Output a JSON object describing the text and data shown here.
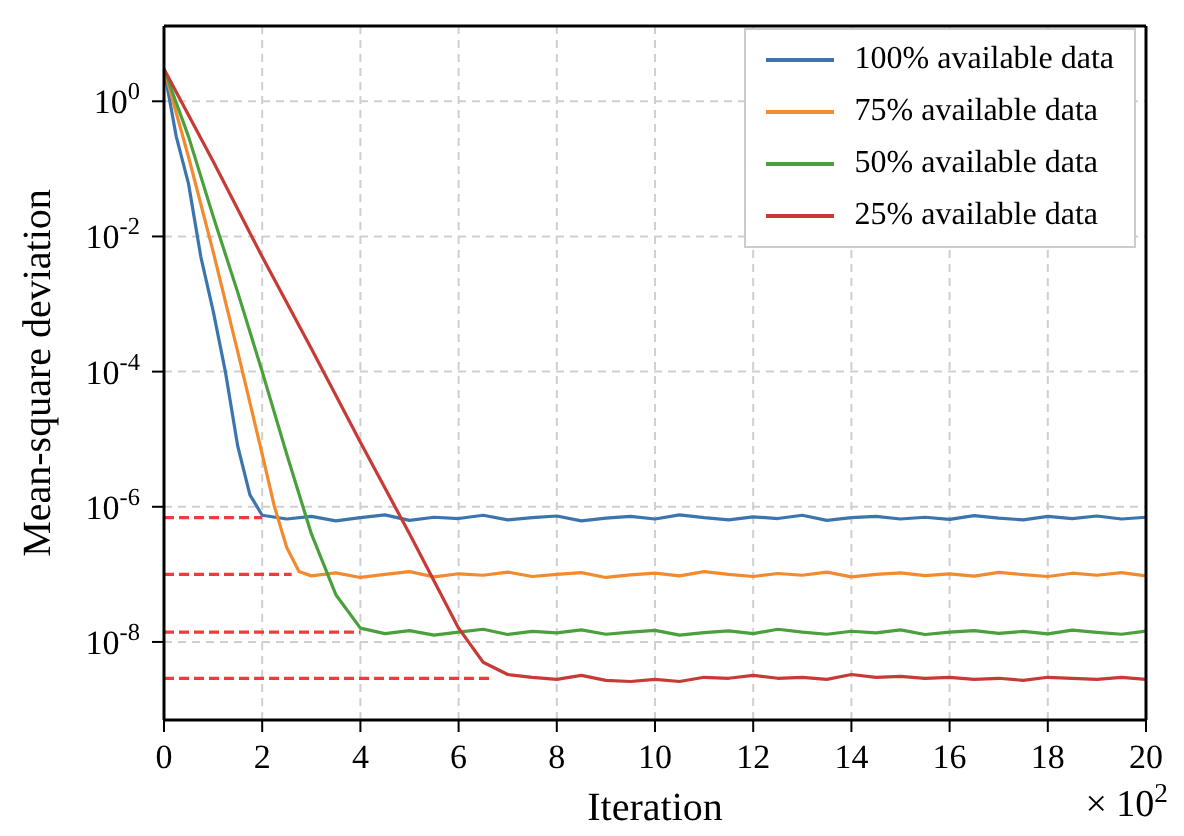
{
  "chart_data": {
    "type": "line",
    "xlabel": "Iteration",
    "ylabel": "Mean-square deviation",
    "annotations": [
      "× 10$^{2}$"
    ],
    "log": "y",
    "grid": true,
    "legend": "top right",
    "line_style": "solid",
    "marker": "none",
    "xlim": [
      0,
      20
    ],
    "xticks": [
      0,
      2,
      4,
      6,
      8,
      10,
      12,
      14,
      16,
      18,
      20
    ],
    "ylim": [
      7e-10,
      13
    ],
    "yticks": [
      {
        "value": 1e-08,
        "label": "10$^{-8}$"
      },
      {
        "value": 1e-06,
        "label": "10$^{-6}$"
      },
      {
        "value": 0.0001,
        "label": "10$^{-4}$"
      },
      {
        "value": 0.01,
        "label": "10$^{-2}$"
      },
      {
        "value": 1,
        "label": "10$^{0}$"
      }
    ],
    "series": [
      {
        "name": "100% available data",
        "color": "#3a75b0",
        "x": [
          0,
          0.25,
          0.5,
          0.75,
          1,
          1.25,
          1.5,
          1.75,
          2,
          2.5,
          3,
          3.5,
          4,
          4.5,
          5,
          5.5,
          6,
          6.5,
          7,
          7.5,
          8,
          8.5,
          9,
          9.5,
          10,
          10.5,
          11,
          11.5,
          12,
          12.5,
          13,
          13.5,
          14,
          14.5,
          15,
          15.5,
          16,
          16.5,
          17,
          17.5,
          18,
          18.5,
          19,
          19.5,
          20
        ],
        "values": [
          3,
          0.3,
          0.06,
          0.005,
          0.0008,
          0.0001,
          8e-06,
          1.5e-06,
          7.5e-07,
          6.6e-07,
          7.2e-07,
          6.2e-07,
          6.9e-07,
          7.6e-07,
          6.3e-07,
          7e-07,
          6.7e-07,
          7.5e-07,
          6.4e-07,
          6.9e-07,
          7.3e-07,
          6.2e-07,
          6.8e-07,
          7.2e-07,
          6.6e-07,
          7.6e-07,
          6.9e-07,
          6.4e-07,
          7.1e-07,
          6.7e-07,
          7.5e-07,
          6.3e-07,
          6.9e-07,
          7.2e-07,
          6.6e-07,
          7e-07,
          6.5e-07,
          7.4e-07,
          6.8e-07,
          6.4e-07,
          7.2e-07,
          6.7e-07,
          7.3e-07,
          6.6e-07,
          7e-07
        ]
      },
      {
        "name": "75% available data",
        "color": "#f28a2e",
        "x": [
          0,
          0.5,
          1,
          1.5,
          2,
          2.25,
          2.5,
          2.75,
          3,
          3.5,
          4,
          4.5,
          5,
          5.5,
          6,
          6.5,
          7,
          7.5,
          8,
          8.5,
          9,
          9.5,
          10,
          10.5,
          11,
          11.5,
          12,
          12.5,
          13,
          13.5,
          14,
          14.5,
          15,
          15.5,
          16,
          16.5,
          17,
          17.5,
          18,
          18.5,
          19,
          19.5,
          20
        ],
        "values": [
          3,
          0.15,
          0.006,
          0.0002,
          6e-06,
          1e-06,
          2.5e-07,
          1.1e-07,
          9.5e-08,
          1.05e-07,
          9e-08,
          1e-07,
          1.1e-07,
          9.2e-08,
          1.02e-07,
          9.7e-08,
          1.08e-07,
          9.3e-08,
          1e-07,
          1.06e-07,
          9e-08,
          9.8e-08,
          1.04e-07,
          9.5e-08,
          1.1e-07,
          1e-07,
          9.3e-08,
          1.03e-07,
          9.7e-08,
          1.08e-07,
          9.2e-08,
          1e-07,
          1.05e-07,
          9.6e-08,
          1.02e-07,
          9.4e-08,
          1.07e-07,
          9.9e-08,
          9.3e-08,
          1.04e-07,
          9.7e-08,
          1.06e-07,
          9.5e-08
        ]
      },
      {
        "name": "50% available data",
        "color": "#4aa03c",
        "x": [
          0,
          0.5,
          1,
          1.5,
          2,
          2.5,
          3,
          3.5,
          4,
          4.5,
          5,
          5.5,
          6,
          6.5,
          7,
          7.5,
          8,
          8.5,
          9,
          9.5,
          10,
          10.5,
          11,
          11.5,
          12,
          12.5,
          13,
          13.5,
          14,
          14.5,
          15,
          15.5,
          16,
          16.5,
          17,
          17.5,
          18,
          18.5,
          19,
          19.5,
          20
        ],
        "values": [
          3,
          0.3,
          0.02,
          0.0015,
          0.0001,
          6e-06,
          4e-07,
          5e-08,
          1.6e-08,
          1.33e-08,
          1.47e-08,
          1.26e-08,
          1.4e-08,
          1.54e-08,
          1.29e-08,
          1.43e-08,
          1.36e-08,
          1.51e-08,
          1.3e-08,
          1.4e-08,
          1.48e-08,
          1.26e-08,
          1.37e-08,
          1.46e-08,
          1.33e-08,
          1.54e-08,
          1.4e-08,
          1.3e-08,
          1.44e-08,
          1.36e-08,
          1.51e-08,
          1.29e-08,
          1.4e-08,
          1.47e-08,
          1.34e-08,
          1.43e-08,
          1.32e-08,
          1.5e-08,
          1.39e-08,
          1.3e-08,
          1.45e-08
        ]
      },
      {
        "name": "25% available data",
        "color": "#c83a35",
        "x": [
          0,
          1,
          2,
          3,
          4,
          5,
          6,
          6.5,
          7,
          7.5,
          8,
          8.5,
          9,
          9.5,
          10,
          10.5,
          11,
          11.5,
          12,
          12.5,
          13,
          13.5,
          14,
          14.5,
          15,
          15.5,
          16,
          16.5,
          17,
          17.5,
          18,
          18.5,
          19,
          19.5,
          20
        ],
        "values": [
          3,
          0.13,
          0.005,
          0.00022,
          9e-06,
          4e-07,
          1.6e-08,
          5e-09,
          3.3e-09,
          3e-09,
          2.8e-09,
          3.2e-09,
          2.7e-09,
          2.6e-09,
          2.8e-09,
          2.6e-09,
          3e-09,
          2.9e-09,
          3.2e-09,
          2.9e-09,
          3e-09,
          2.8e-09,
          3.3e-09,
          3e-09,
          3.1e-09,
          2.9e-09,
          3e-09,
          2.8e-09,
          2.9e-09,
          2.7e-09,
          3e-09,
          2.9e-09,
          2.8e-09,
          3e-09,
          2.8e-09
        ]
      },
      {
        "color": "#ee3b3b",
        "line_style": "dashed",
        "x": [
          0,
          2
        ],
        "values": [
          6.9e-07,
          6.9e-07
        ]
      },
      {
        "color": "#ee3b3b",
        "line_style": "dashed",
        "x": [
          0,
          2.6
        ],
        "values": [
          1e-07,
          1e-07
        ]
      },
      {
        "color": "#ee3b3b",
        "line_style": "dashed",
        "x": [
          0,
          4
        ],
        "values": [
          1.4e-08,
          1.4e-08
        ]
      },
      {
        "color": "#ee3b3b",
        "line_style": "dashed",
        "x": [
          0,
          6.7
        ],
        "values": [
          2.9e-09,
          2.9e-09
        ]
      }
    ]
  }
}
